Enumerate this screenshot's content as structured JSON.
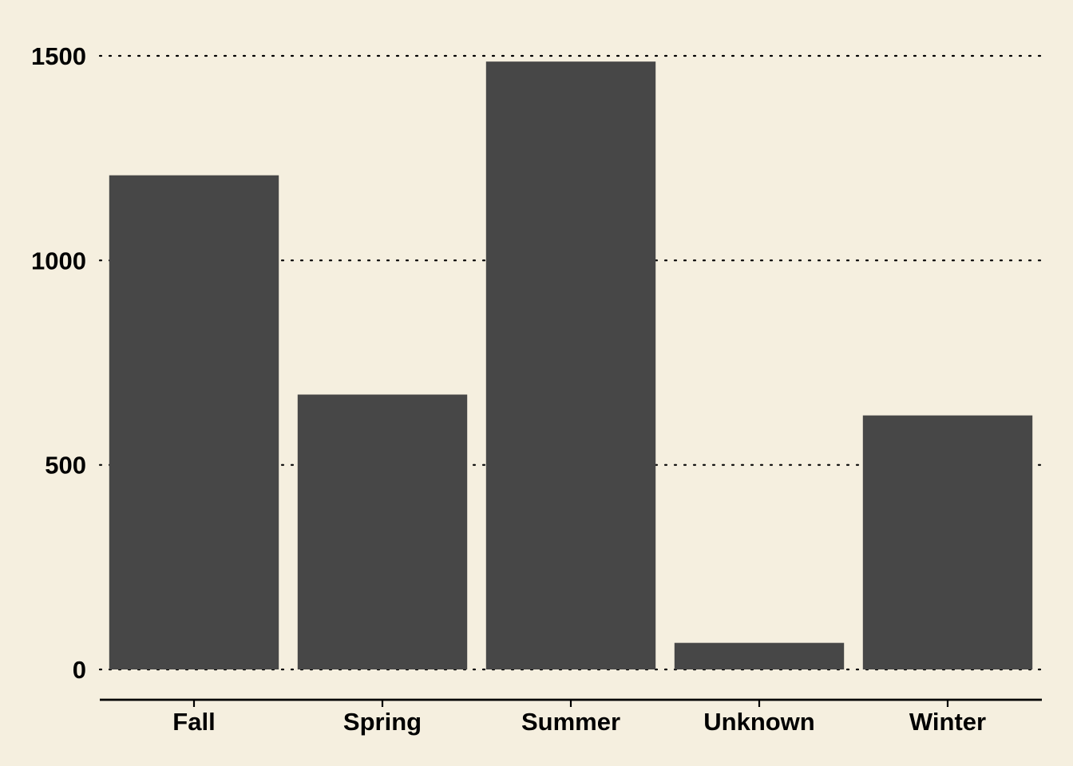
{
  "chart_data": {
    "type": "bar",
    "title": "",
    "xlabel": "",
    "ylabel": "",
    "categories": [
      "Fall",
      "Spring",
      "Summer",
      "Unknown",
      "Winter"
    ],
    "values": [
      1208,
      672,
      1486,
      65,
      621
    ],
    "ylim": [
      -75,
      1500
    ],
    "yticks": [
      0,
      500,
      1000,
      1500
    ],
    "ytick_labels": [
      "0",
      "500",
      "1000",
      "1500"
    ],
    "grid": "horizontal dotted",
    "legend": "none",
    "colors": {
      "bar": "#474747",
      "background": "#f5efdf",
      "text": "#000000"
    }
  }
}
